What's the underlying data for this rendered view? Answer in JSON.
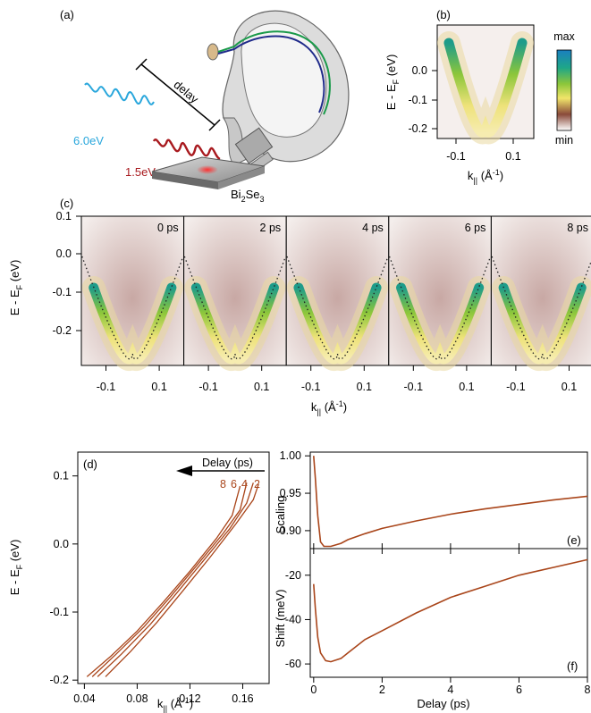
{
  "panel_labels": [
    "(a)",
    "(b)",
    "(c)",
    "(d)",
    "(e)",
    "(f)"
  ],
  "panel_a": {
    "photon_probe": "6.0eV",
    "photon_pump": "1.5eV",
    "delay_label": "delay",
    "sample": "Bi",
    "sample_sub1": "2",
    "sample_mid": "Se",
    "sample_sub2": "3",
    "colors": {
      "probe": "#2aa7dc",
      "pump": "#a8191e"
    }
  },
  "panel_b": {
    "ylabel": "E - E",
    "ylabel_sub": "F",
    "ylabel_unit": " (eV)",
    "xlabel": "k",
    "xlabel_sub": "||",
    "xlabel_unit": " (Å",
    "xlabel_exp": "-1",
    "xlabel_close": ")",
    "yticks": [
      "0.0",
      "-0.1",
      "-0.2"
    ],
    "xticks": [
      "-0.1",
      "0.1"
    ],
    "colorbar_max": "max",
    "colorbar_min": "min"
  },
  "panel_c": {
    "ylabel": "E - E",
    "ylabel_sub": "F",
    "ylabel_unit": " (eV)",
    "xlabel": "k",
    "xlabel_sub": "||",
    "xlabel_unit": " (Å",
    "xlabel_exp": "-1",
    "xlabel_close": ")",
    "yticks": [
      "0.1",
      "0.0",
      "-0.1",
      "-0.2"
    ],
    "xticks": [
      "-0.1",
      "0.1"
    ],
    "delays": [
      "0 ps",
      "2 ps",
      "4 ps",
      "6 ps",
      "8 ps"
    ]
  },
  "chart_data": [
    {
      "type": "line",
      "panel": "(d)",
      "xlabel": "k|| (Å-1)",
      "ylabel": "E - EF (eV)",
      "xlim": [
        0.035,
        0.18
      ],
      "ylim": [
        -0.205,
        0.135
      ],
      "xticks": [
        "0.04",
        "0.08",
        "0.12",
        "0.16"
      ],
      "yticks": [
        "0.1",
        "0.0",
        "-0.1",
        "-0.2"
      ],
      "annotation": "Delay (ps)",
      "legend_numbers": [
        "8",
        "6",
        "4",
        "2"
      ],
      "series": [
        {
          "name": "8",
          "points": [
            [
              0.042,
              -0.195
            ],
            [
              0.06,
              -0.165
            ],
            [
              0.08,
              -0.128
            ],
            [
              0.1,
              -0.085
            ],
            [
              0.12,
              -0.04
            ],
            [
              0.14,
              0.008
            ],
            [
              0.152,
              0.042
            ],
            [
              0.158,
              0.085
            ]
          ]
        },
        {
          "name": "6",
          "points": [
            [
              0.046,
              -0.195
            ],
            [
              0.064,
              -0.162
            ],
            [
              0.085,
              -0.122
            ],
            [
              0.105,
              -0.078
            ],
            [
              0.125,
              -0.032
            ],
            [
              0.145,
              0.015
            ],
            [
              0.158,
              0.05
            ],
            [
              0.163,
              0.09
            ]
          ]
        },
        {
          "name": "4",
          "points": [
            [
              0.05,
              -0.195
            ],
            [
              0.068,
              -0.162
            ],
            [
              0.09,
              -0.118
            ],
            [
              0.11,
              -0.072
            ],
            [
              0.13,
              -0.025
            ],
            [
              0.15,
              0.022
            ],
            [
              0.163,
              0.06
            ],
            [
              0.168,
              0.09
            ]
          ]
        },
        {
          "name": "2",
          "points": [
            [
              0.056,
              -0.195
            ],
            [
              0.075,
              -0.158
            ],
            [
              0.095,
              -0.115
            ],
            [
              0.115,
              -0.068
            ],
            [
              0.135,
              -0.02
            ],
            [
              0.155,
              0.03
            ],
            [
              0.168,
              0.065
            ],
            [
              0.172,
              0.088
            ]
          ]
        }
      ],
      "color": "#a9451a"
    },
    {
      "type": "line",
      "panel": "(e)",
      "ylabel": "Scaling",
      "xlim": [
        -0.1,
        8
      ],
      "ylim": [
        0.876,
        1.005
      ],
      "yticks": [
        "1.00",
        "0.95",
        "0.90"
      ],
      "points": [
        [
          0,
          1.0
        ],
        [
          0.05,
          0.97
        ],
        [
          0.12,
          0.92
        ],
        [
          0.2,
          0.885
        ],
        [
          0.3,
          0.879
        ],
        [
          0.5,
          0.879
        ],
        [
          0.8,
          0.883
        ],
        [
          1,
          0.888
        ],
        [
          1.5,
          0.896
        ],
        [
          2,
          0.903
        ],
        [
          3,
          0.913
        ],
        [
          4,
          0.922
        ],
        [
          5,
          0.929
        ],
        [
          6,
          0.935
        ],
        [
          7,
          0.941
        ],
        [
          8,
          0.946
        ]
      ],
      "color": "#a9451a"
    },
    {
      "type": "line",
      "panel": "(f)",
      "xlabel": "Delay (ps)",
      "ylabel": "Shift (meV)",
      "xlim": [
        -0.1,
        8
      ],
      "ylim": [
        -66,
        -8
      ],
      "yticks": [
        "-20",
        "-40",
        "-60"
      ],
      "xticks": [
        "0",
        "2",
        "4",
        "6",
        "8"
      ],
      "points": [
        [
          0,
          -24
        ],
        [
          0.05,
          -35
        ],
        [
          0.12,
          -48
        ],
        [
          0.2,
          -55
        ],
        [
          0.35,
          -58.5
        ],
        [
          0.5,
          -59
        ],
        [
          0.8,
          -57.5
        ],
        [
          1,
          -55
        ],
        [
          1.5,
          -49
        ],
        [
          2,
          -45
        ],
        [
          3,
          -37
        ],
        [
          4,
          -30
        ],
        [
          5,
          -25
        ],
        [
          6,
          -20
        ],
        [
          7,
          -16.5
        ],
        [
          8,
          -13
        ]
      ],
      "color": "#a9451a"
    }
  ]
}
